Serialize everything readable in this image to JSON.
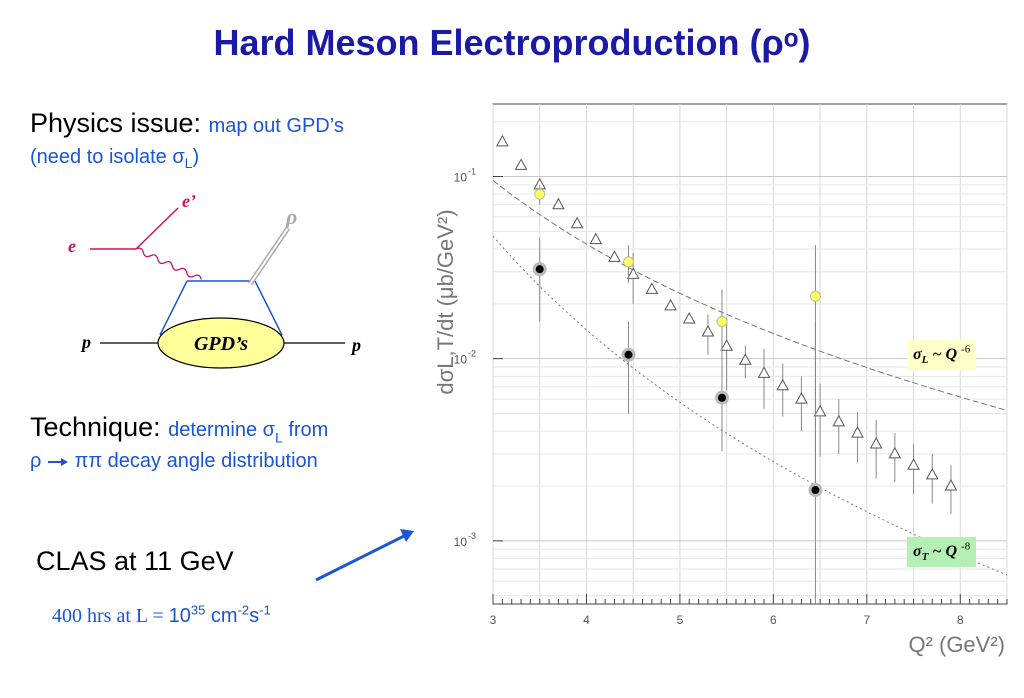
{
  "title": "Hard Meson Electroproduction (ρᵒ)",
  "physics": {
    "label": "Physics issue:",
    "text": "map out GPD’s",
    "line2_pre": "(need to isolate σ",
    "line2_sub": "L",
    "line2_post": ")"
  },
  "diagram": {
    "e_in": "e",
    "e_out": "e’",
    "rho": "ρ",
    "p_in": "p",
    "p_out": "p",
    "gpd": "GPD’s"
  },
  "technique": {
    "label": "Technique:",
    "text_pre": "determine σ",
    "text_sub": "L",
    "text_post": " from",
    "line2_rho": "ρ",
    "line2_rest": "ππ decay angle distribution"
  },
  "clas": "CLAS at 11 GeV",
  "hours": {
    "pre": "400 hrs at L = ",
    "base": "10",
    "exp": "35",
    "unit1": " cm",
    "exp1": "-2",
    "unit2": "s",
    "exp2": "-1"
  },
  "colors": {
    "title": "#1a1aa6",
    "accent": "#1a55d6",
    "legend_L_bg": "#ffffc8",
    "legend_T_bg": "#b4f0b4",
    "gpd_fill": "#ffff99",
    "electron": "#cc1166"
  },
  "chart_data": {
    "type": "scatter",
    "log_y": true,
    "xlim": [
      3,
      8.5
    ],
    "ylim": [
      0.00045,
      0.25
    ],
    "grid": true,
    "xlabel": "Q² (GeV²)",
    "ylabel": "dσL,T/dt (μb/GeV²)",
    "x_ticks": [
      3,
      4,
      5,
      6,
      7,
      8
    ],
    "y_tick_labels": [
      {
        "base": "10",
        "exp": "-1",
        "value": 0.1
      },
      {
        "base": "10",
        "exp": "-2",
        "value": 0.01
      },
      {
        "base": "10",
        "exp": "-3",
        "value": 0.001
      }
    ],
    "series": [
      {
        "marker": "triangle",
        "x": [
          3.1,
          3.3,
          3.5,
          3.7,
          3.9,
          4.1,
          4.3,
          4.5,
          4.7,
          4.9,
          5.1,
          5.3,
          5.5,
          5.7,
          5.9,
          6.1,
          6.3,
          6.5,
          6.7,
          6.9,
          7.1,
          7.3,
          7.5,
          7.7,
          7.9
        ],
        "y": [
          0.155,
          0.115,
          0.09,
          0.07,
          0.055,
          0.045,
          0.036,
          0.029,
          0.024,
          0.0195,
          0.0165,
          0.014,
          0.0117,
          0.0098,
          0.0083,
          0.0071,
          0.006,
          0.0051,
          0.0045,
          0.0039,
          0.0034,
          0.003,
          0.0026,
          0.0023,
          0.002
        ],
        "yerr": [
          0,
          0,
          0,
          0,
          0,
          0,
          0,
          0.009,
          0,
          0,
          0,
          0.0035,
          0.005,
          0.002,
          0.003,
          0.0023,
          0.002,
          0.0022,
          0.0015,
          0.0012,
          0.0012,
          0.0009,
          0.0008,
          0.0007,
          0.0006
        ]
      },
      {
        "marker": "yellow-circle",
        "x": [
          3.5,
          4.45,
          5.45,
          6.45
        ],
        "y": [
          0.08,
          0.034,
          0.016,
          0.022
        ],
        "yerr": [
          0.01,
          0.008,
          0.008,
          0.02
        ]
      },
      {
        "marker": "black-circle",
        "x": [
          3.5,
          4.45,
          5.45,
          6.45
        ],
        "y": [
          0.031,
          0.0105,
          0.0061,
          0.0019
        ],
        "yerr": [
          0.015,
          0.0055,
          0.003,
          0.014
        ]
      }
    ],
    "curves": [
      {
        "name": "σL ~ Q-6",
        "style": "dashed",
        "x": [
          3.0,
          8.5
        ],
        "y": [
          0.095,
          0.0052
        ]
      },
      {
        "name": "σT ~ Q-8",
        "style": "dotted",
        "x": [
          3.0,
          8.5
        ],
        "y": [
          0.047,
          0.00065
        ]
      }
    ],
    "legend": [
      {
        "sigma": "σ",
        "sub": "L",
        "rest": " ~ Q ",
        "exp": "-6",
        "color": "#ffffc8"
      },
      {
        "sigma": "σ",
        "sub": "T",
        "rest": " ~ Q ",
        "exp": "-8",
        "color": "#b4f0b4"
      }
    ]
  }
}
